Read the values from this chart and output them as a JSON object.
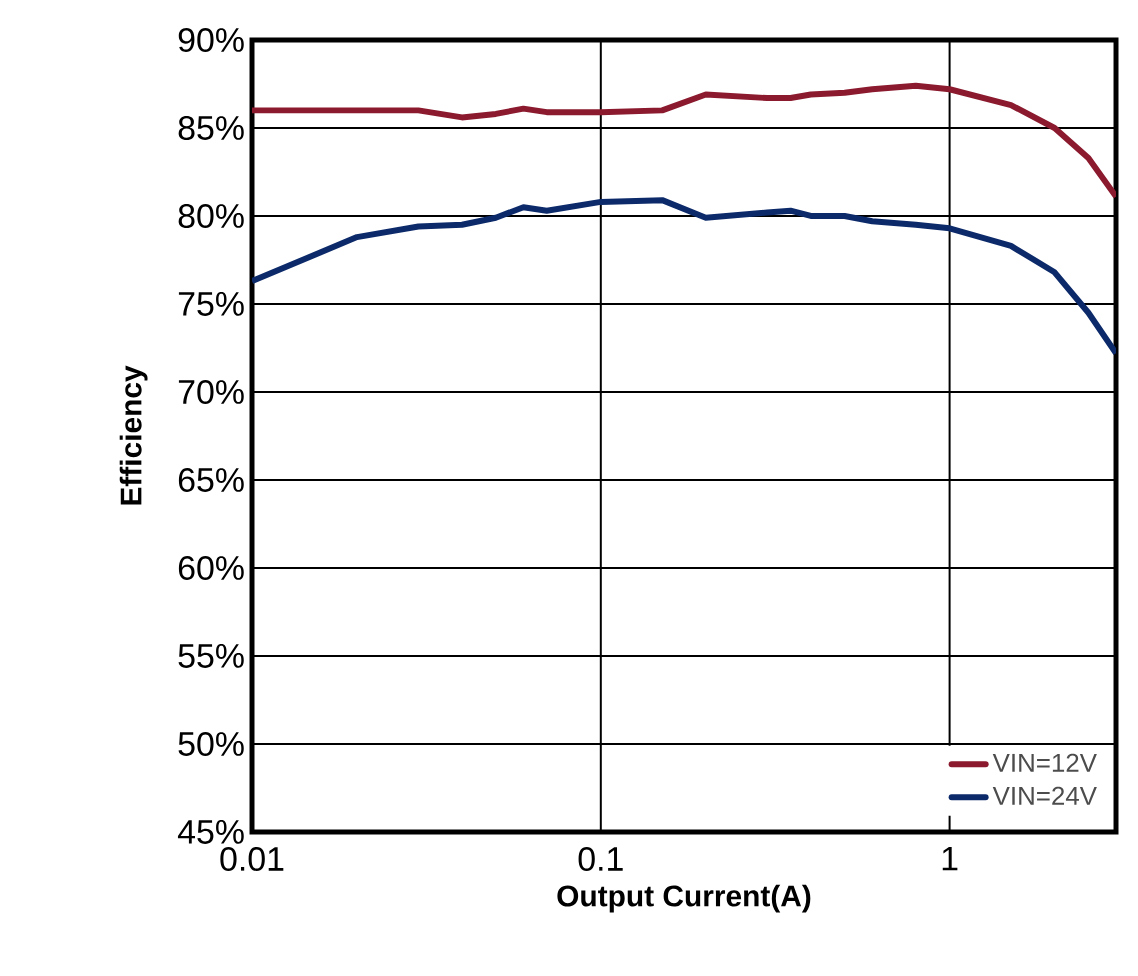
{
  "chart_data": {
    "type": "line",
    "xlabel": "Output Current(A)",
    "ylabel": "Efficiency",
    "x": [
      0.01,
      0.02,
      0.03,
      0.04,
      0.05,
      0.06,
      0.07,
      0.1,
      0.15,
      0.2,
      0.3,
      0.35,
      0.4,
      0.5,
      0.6,
      0.8,
      1.0,
      1.5,
      2.0,
      2.5,
      3.0
    ],
    "series": [
      {
        "name": "VIN=12V",
        "color": "#8b1a2e",
        "values": [
          86.0,
          86.0,
          86.0,
          85.6,
          85.8,
          86.1,
          85.9,
          85.9,
          86.0,
          86.9,
          86.7,
          86.7,
          86.9,
          87.0,
          87.2,
          87.4,
          87.2,
          86.3,
          85.0,
          83.3,
          81.1
        ]
      },
      {
        "name": "VIN=24V",
        "color": "#0c2a6a",
        "values": [
          76.3,
          78.8,
          79.4,
          79.5,
          79.9,
          80.5,
          80.3,
          80.8,
          80.9,
          79.9,
          80.2,
          80.3,
          80.0,
          80.0,
          79.7,
          79.5,
          79.3,
          78.3,
          76.8,
          74.5,
          72.2
        ]
      }
    ],
    "xlim": [
      0.01,
      3
    ],
    "ylim": [
      45,
      90
    ],
    "log": "x",
    "xticks": [
      0.01,
      0.1,
      1
    ],
    "yticks": [
      {
        "value": 45,
        "label": "45%"
      },
      {
        "value": 50,
        "label": "50%"
      },
      {
        "value": 55,
        "label": "55%"
      },
      {
        "value": 60,
        "label": "60%"
      },
      {
        "value": 65,
        "label": "65%"
      },
      {
        "value": 70,
        "label": "70%"
      },
      {
        "value": 75,
        "label": "75%"
      },
      {
        "value": 80,
        "label": "80%"
      },
      {
        "value": 85,
        "label": "85%"
      },
      {
        "value": 90,
        "label": "90%"
      }
    ],
    "grid": true,
    "legend": "bottom right",
    "marker": "none",
    "line_style": "solid"
  }
}
